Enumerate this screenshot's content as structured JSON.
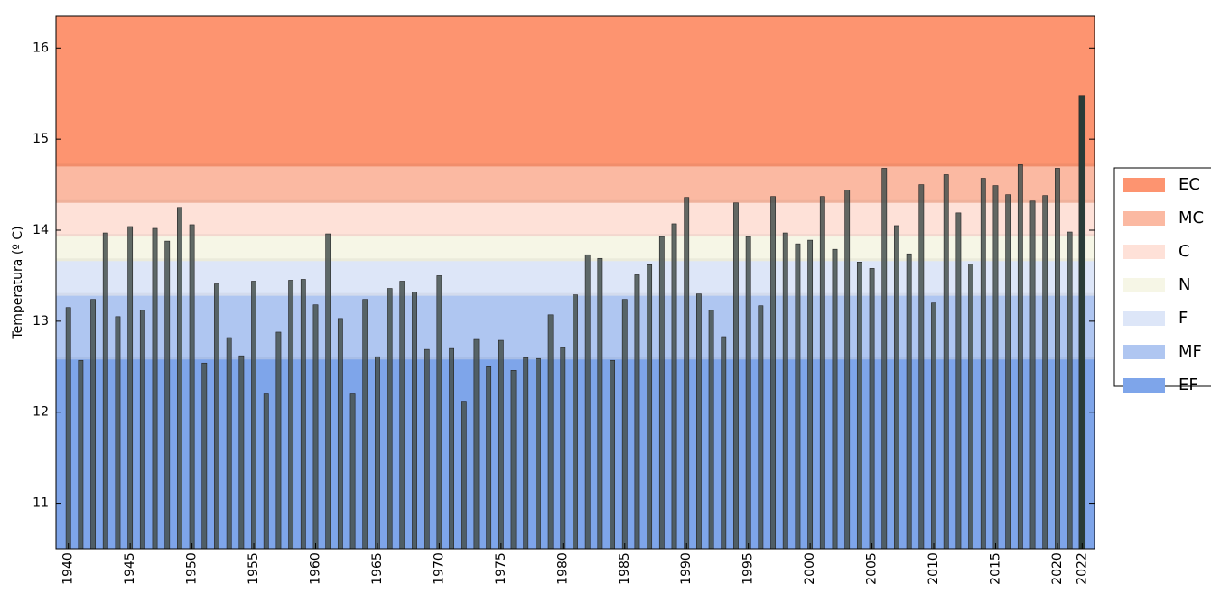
{
  "chart_data": {
    "type": "bar",
    "y_label": "Temperatura (º C)",
    "x": [
      1940,
      1941,
      1942,
      1943,
      1944,
      1945,
      1946,
      1947,
      1948,
      1949,
      1950,
      1951,
      1952,
      1953,
      1954,
      1955,
      1956,
      1957,
      1958,
      1959,
      1960,
      1961,
      1962,
      1963,
      1964,
      1965,
      1966,
      1967,
      1968,
      1969,
      1970,
      1971,
      1972,
      1973,
      1974,
      1975,
      1976,
      1977,
      1978,
      1979,
      1980,
      1981,
      1982,
      1983,
      1984,
      1985,
      1986,
      1987,
      1988,
      1989,
      1990,
      1991,
      1992,
      1993,
      1994,
      1995,
      1996,
      1997,
      1998,
      1999,
      2000,
      2001,
      2002,
      2003,
      2004,
      2005,
      2006,
      2007,
      2008,
      2009,
      2010,
      2011,
      2012,
      2013,
      2014,
      2015,
      2016,
      2017,
      2018,
      2019,
      2020,
      2021,
      2022
    ],
    "values": [
      13.15,
      12.57,
      13.24,
      13.97,
      13.05,
      14.04,
      13.12,
      14.02,
      13.88,
      14.25,
      14.06,
      12.54,
      13.41,
      12.82,
      12.62,
      13.44,
      12.21,
      12.88,
      13.45,
      13.46,
      13.18,
      13.96,
      13.03,
      12.21,
      13.24,
      12.61,
      13.36,
      13.44,
      13.32,
      12.69,
      13.5,
      12.7,
      12.12,
      12.8,
      12.5,
      12.79,
      12.46,
      12.6,
      12.59,
      13.07,
      12.71,
      13.29,
      13.73,
      13.69,
      12.57,
      13.24,
      13.51,
      13.62,
      13.93,
      14.07,
      14.36,
      13.3,
      13.12,
      12.83,
      14.3,
      13.93,
      13.17,
      14.37,
      13.97,
      13.85,
      13.89,
      14.37,
      13.79,
      14.44,
      13.65,
      13.58,
      14.68,
      14.05,
      13.74,
      14.5,
      13.2,
      14.61,
      14.19,
      13.63,
      14.57,
      14.49,
      14.39,
      14.72,
      14.32,
      14.38,
      14.68,
      13.98,
      15.48
    ],
    "color": "#46514f",
    "highlight_color": "#2a3c38",
    "xlim": [
      1939,
      2023
    ],
    "xticks": [
      1940,
      1945,
      1950,
      1955,
      1960,
      1965,
      1970,
      1975,
      1980,
      1985,
      1990,
      1995,
      2000,
      2005,
      2010,
      2015,
      2020,
      2022
    ],
    "ylim": [
      10.5,
      16.35
    ],
    "yticks": [
      11,
      12,
      13,
      14,
      15,
      16
    ],
    "bands": [
      {
        "name": "EC",
        "color": "#fd9470",
        "min": 14.7,
        "max": 16.35
      },
      {
        "name": "MC",
        "color": "#fbb9a2",
        "min": 14.3,
        "max": 14.7
      },
      {
        "name": "C",
        "color": "#fee1d8",
        "min": 13.93,
        "max": 14.3
      },
      {
        "name": "N",
        "color": "#f6f6e6",
        "min": 13.66,
        "max": 13.93
      },
      {
        "name": "F",
        "color": "#dde6f8",
        "min": 13.28,
        "max": 13.66
      },
      {
        "name": "MF",
        "color": "#afc6f1",
        "min": 12.58,
        "max": 13.28
      },
      {
        "name": "EF",
        "color": "#7ea5ea",
        "min": 10.5,
        "max": 12.58
      }
    ],
    "legend": "right"
  }
}
